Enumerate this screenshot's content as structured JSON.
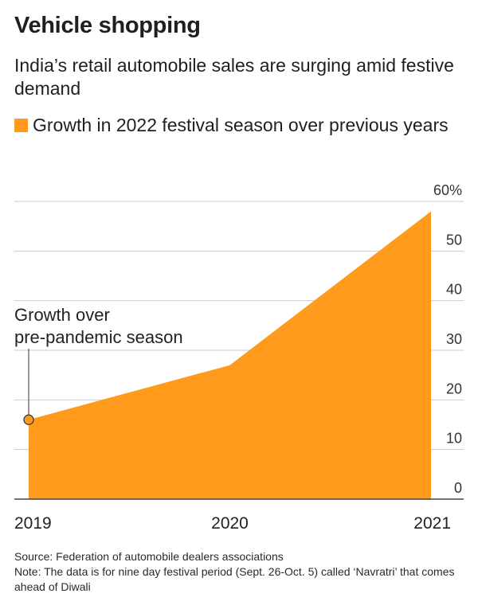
{
  "title": "Vehicle shopping",
  "subtitle": "India’s retail automobile sales are surging amid festive demand",
  "legend": {
    "label": "Growth in 2022 festival season over previous years"
  },
  "annotation": "Growth over pre-pandemic season",
  "source": "Source: Federation of automobile dealers associations",
  "note": "Note: The data is for nine day festival period (Sept. 26-Oct. 5) called ‘Navratri’ that comes ahead of Diwali",
  "colors": {
    "area": "#ff9a1c",
    "grid": "#cccccc",
    "axis": "#444444",
    "marker": "#f39a25"
  },
  "chart_data": {
    "type": "area",
    "x": [
      "2019",
      "2020",
      "2021"
    ],
    "series": [
      {
        "values": [
          16,
          27,
          58
        ]
      }
    ],
    "ylim": [
      0,
      60
    ],
    "yticks": [
      0,
      10,
      20,
      30,
      40,
      50,
      60
    ],
    "ytick_labels": [
      "0",
      "10",
      "20",
      "30",
      "40",
      "50",
      "60%"
    ],
    "xlabel": "",
    "ylabel": "",
    "grid": true,
    "y_axis_position": "right",
    "legend_position": "top"
  }
}
